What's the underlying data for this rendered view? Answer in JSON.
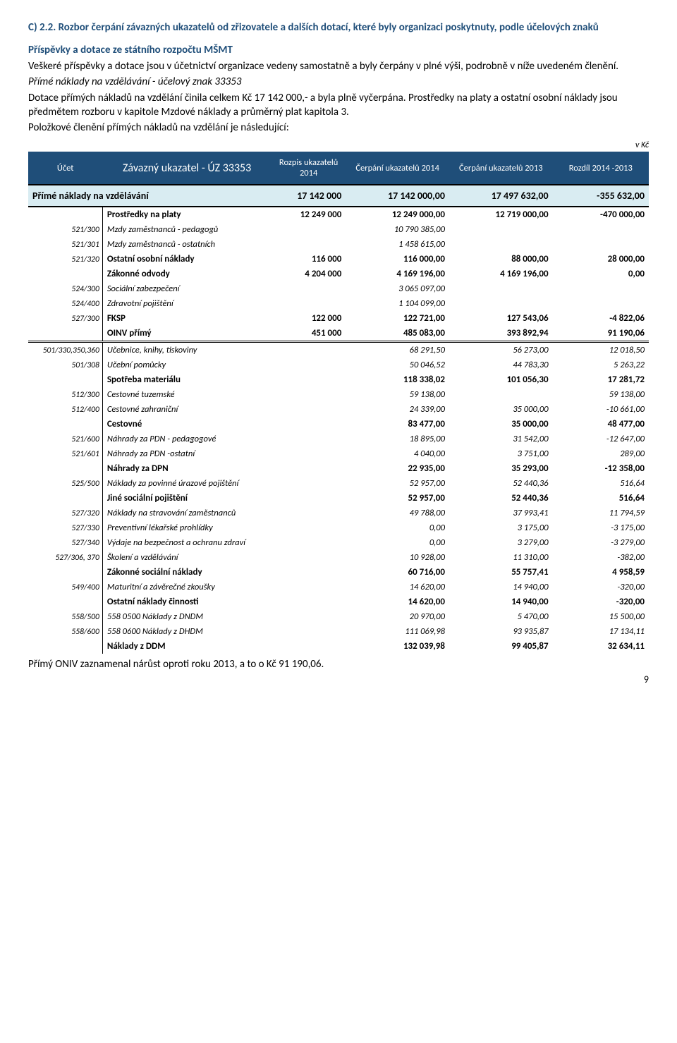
{
  "heading": "C) 2.2. Rozbor čerpání závazných ukazatelů od zřizovatele a dalších dotací, které byly organizaci poskytnuty, podle účelových znaků",
  "subheading": "Příspěvky a dotace ze státního rozpočtu MŠMT",
  "para1": "Veškeré příspěvky a dotace jsou v účetnictví organizace vedeny samostatně a byly čerpány v plné výši, podrobně v níže uvedeném členění.",
  "para2_i": "Přímé náklady na vzdělávání  -  účelový znak 33353",
  "para3": "Dotace přímých nákladů na vzdělání činila celkem Kč 17 142 000,- a byla plně vyčerpána. Prostředky na platy a ostatní osobní náklady jsou předmětem rozboru v kapitole Mzdové náklady a průměrný plat kapitola 3.",
  "para4": "Položkové členění přímých nákladů na vzdělání je následující:",
  "vkc": "v Kč",
  "th": {
    "ucet": "Účet",
    "nazev": "Závazný ukazatel - ÚZ 33353",
    "rozpis": "Rozpis ukazatelů 2014",
    "cerp14": "Čerpání ukazatelů 2014",
    "cerp13": "Čerpání ukazatelů 2013",
    "rozdil": "Rozdíl 2014 -2013"
  },
  "section": {
    "name": "Přímé náklady na vzdělávání",
    "rozpis": "17 142 000",
    "c14": "17 142 000,00",
    "c13": "17 497 632,00",
    "diff": "-355 632,00"
  },
  "rows1": [
    {
      "acct": "",
      "name": "Prostředky na platy",
      "bold": true,
      "r": "12 249 000",
      "c14": "12 249 000,00",
      "c13": "12 719 000,00",
      "d": "-470 000,00"
    },
    {
      "acct": "521/300",
      "name": "Mzdy zaměstnanců - pedagogů",
      "italic": true,
      "r": "",
      "c14": "10 790 385,00",
      "c13": "",
      "d": ""
    },
    {
      "acct": "521/301",
      "name": "Mzdy zaměstnanců - ostatních",
      "italic": true,
      "r": "",
      "c14": "1 458 615,00",
      "c13": "",
      "d": ""
    },
    {
      "acct": "521/320",
      "name": "Ostatní osobní náklady",
      "bold": true,
      "r": "116 000",
      "c14": "116 000,00",
      "c13": "88 000,00",
      "d": "28 000,00"
    },
    {
      "acct": "",
      "name": "Zákonné odvody",
      "bold": true,
      "r": "4 204 000",
      "c14": "4 169 196,00",
      "c13": "4 169 196,00",
      "d": "0,00"
    },
    {
      "acct": "524/300",
      "name": "Sociální zabezpečení",
      "italic": true,
      "r": "",
      "c14": "3 065 097,00",
      "c13": "",
      "d": ""
    },
    {
      "acct": "524/400",
      "name": "Zdravotní pojištění",
      "italic": true,
      "r": "",
      "c14": "1 104 099,00",
      "c13": "",
      "d": ""
    },
    {
      "acct": "527/300",
      "name": "FKSP",
      "bold": true,
      "r": "122 000",
      "c14": "122 721,00",
      "c13": "127 543,06",
      "d": "-4 822,06"
    },
    {
      "acct": "",
      "name": "OINV přímý",
      "bold": true,
      "r": "451 000",
      "c14": "485 083,00",
      "c13": "393 892,94",
      "d": "91 190,06"
    }
  ],
  "rows2": [
    {
      "acct": "501/330,350,360",
      "name": "Učebnice, knihy, tiskoviny",
      "italic": true,
      "r": "",
      "c14": "68 291,50",
      "c13": "56 273,00",
      "d": "12 018,50"
    },
    {
      "acct": "501/308",
      "name": "Učební pomůcky",
      "italic": true,
      "r": "",
      "c14": "50 046,52",
      "c13": "44 783,30",
      "d": "5 263,22"
    },
    {
      "acct": "",
      "name": "Spotřeba materiálu",
      "bold": true,
      "r": "",
      "c14": "118 338,02",
      "c13": "101 056,30",
      "d": "17 281,72"
    },
    {
      "acct": "512/300",
      "name": "Cestovné tuzemské",
      "italic": true,
      "r": "",
      "c14": "59 138,00",
      "c13": "",
      "d": "59 138,00"
    },
    {
      "acct": "512/400",
      "name": "Cestovné zahraniční",
      "italic": true,
      "r": "",
      "c14": "24 339,00",
      "c13": "35 000,00",
      "d": "-10 661,00"
    },
    {
      "acct": "",
      "name": "Cestovné",
      "bold": true,
      "r": "",
      "c14": "83 477,00",
      "c13": "35 000,00",
      "d": "48 477,00"
    },
    {
      "acct": "521/600",
      "name": "Náhrady za PDN - pedagogové",
      "italic": true,
      "r": "",
      "c14": "18 895,00",
      "c13": "31 542,00",
      "d": "-12 647,00"
    },
    {
      "acct": "521/601",
      "name": "Náhrady za PDN -ostatní",
      "italic": true,
      "r": "",
      "c14": "4 040,00",
      "c13": "3 751,00",
      "d": "289,00"
    },
    {
      "acct": "",
      "name": "Náhrady za DPN",
      "bold": true,
      "r": "",
      "c14": "22 935,00",
      "c13": "35 293,00",
      "d": "-12 358,00"
    },
    {
      "acct": "525/500",
      "name": "Náklady za povinné úrazové pojištění",
      "italic": true,
      "r": "",
      "c14": "52 957,00",
      "c13": "52 440,36",
      "d": "516,64"
    },
    {
      "acct": "",
      "name": "Jiné sociální pojištění",
      "bold": true,
      "r": "",
      "c14": "52 957,00",
      "c13": "52 440,36",
      "d": "516,64"
    },
    {
      "acct": "527/320",
      "name": "Náklady na stravování zaměstnanců",
      "italic": true,
      "r": "",
      "c14": "49 788,00",
      "c13": "37 993,41",
      "d": "11 794,59"
    },
    {
      "acct": "527/330",
      "name": "Preventivní lékařské prohlídky",
      "italic": true,
      "r": "",
      "c14": "0,00",
      "c13": "3 175,00",
      "d": "-3 175,00"
    },
    {
      "acct": "527/340",
      "name": "Výdaje na bezpečnost a ochranu zdraví",
      "italic": true,
      "r": "",
      "c14": "0,00",
      "c13": "3 279,00",
      "d": "-3 279,00"
    },
    {
      "acct": "527/306, 370",
      "name": "Školení a vzdělávání",
      "italic": true,
      "r": "",
      "c14": "10 928,00",
      "c13": "11 310,00",
      "d": "-382,00"
    },
    {
      "acct": "",
      "name": "Zákonné sociální náklady",
      "bold": true,
      "r": "",
      "c14": "60 716,00",
      "c13": "55 757,41",
      "d": "4 958,59"
    },
    {
      "acct": "549/400",
      "name": "Maturitní a závěrečné zkoušky",
      "italic": true,
      "r": "",
      "c14": "14 620,00",
      "c13": "14 940,00",
      "d": "-320,00"
    },
    {
      "acct": "",
      "name": "Ostatní náklady činnosti",
      "bold": true,
      "r": "",
      "c14": "14 620,00",
      "c13": "14 940,00",
      "d": "-320,00"
    },
    {
      "acct": "558/500",
      "name": "558 0500  Náklady z DNDM",
      "italic": true,
      "r": "",
      "c14": "20 970,00",
      "c13": "5 470,00",
      "d": "15 500,00"
    },
    {
      "acct": "558/600",
      "name": "558 0600  Náklady z DHDM",
      "italic": true,
      "r": "",
      "c14": "111 069,98",
      "c13": "93 935,87",
      "d": "17 134,11"
    },
    {
      "acct": "",
      "name": "Náklady z DDM",
      "bold": true,
      "r": "",
      "c14": "132 039,98",
      "c13": "99 405,87",
      "d": "32 634,11"
    }
  ],
  "footer": "Přímý ONIV zaznamenal nárůst oproti roku 2013, a to o Kč 91 190,06.",
  "pagenum": "9"
}
